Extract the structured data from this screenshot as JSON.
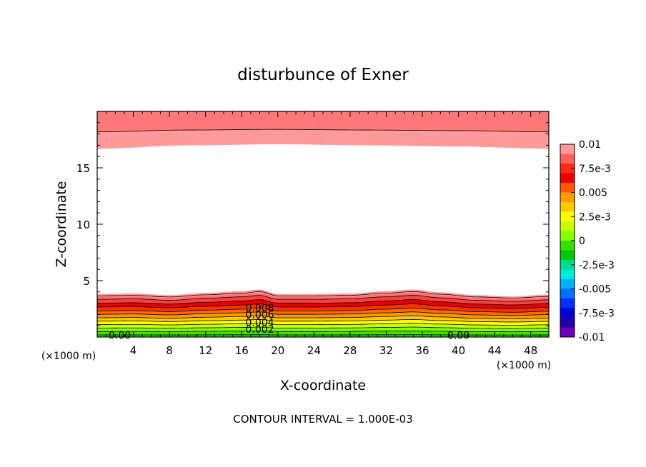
{
  "chart_data": {
    "type": "contour",
    "title": "disturbunce of Exner",
    "xlabel": "X-coordinate",
    "ylabel": "Z-coordinate",
    "x_unit_label_left": "(×1000 m)",
    "x_unit_label_right": "(×1000 m)",
    "xlim": [
      0,
      50
    ],
    "ylim": [
      0,
      20
    ],
    "x_ticks": [
      4,
      8,
      12,
      16,
      20,
      24,
      28,
      32,
      36,
      40,
      44,
      48
    ],
    "x_tick_labels": [
      "4",
      "8",
      "12",
      "16",
      "20",
      "24",
      "28",
      "32",
      "36",
      "40",
      "44",
      "48"
    ],
    "y_ticks": [
      5,
      10,
      15
    ],
    "y_tick_labels": [
      "5",
      "10",
      "15"
    ],
    "contour_interval_text": "CONTOUR INTERVAL = 1.000E-03",
    "colorbar": {
      "ticks": [
        0.01,
        0.0075,
        0.005,
        0.0025,
        0,
        -0.0025,
        -0.005,
        -0.0075,
        -0.01
      ],
      "tick_labels": [
        "0.01",
        "7.5e-3",
        "0.005",
        "2.5e-3",
        "0",
        "-2.5e-3",
        "-0.005",
        "-7.5e-3",
        "-0.01"
      ],
      "colors_top_to_bottom": [
        "#ff9a9a",
        "#ff6060",
        "#ff2a18",
        "#e60000",
        "#ff5a00",
        "#ff9a00",
        "#ffc800",
        "#ffff00",
        "#c8ff00",
        "#88ff00",
        "#33e000",
        "#00c800",
        "#00d890",
        "#00e8d8",
        "#00b0ff",
        "#0070ff",
        "#0030ff",
        "#0000d8",
        "#2000a8",
        "#7000b8"
      ]
    },
    "contour_labels": [
      {
        "text": "0.008",
        "x": 18.0,
        "z": 2.6
      },
      {
        "text": "0.006",
        "x": 18.0,
        "z": 2.0
      },
      {
        "text": "0.004",
        "x": 18.0,
        "z": 1.3
      },
      {
        "text": "0.002",
        "x": 18.0,
        "z": 0.7
      },
      {
        "text": "0.00",
        "x": 2.5,
        "z": 0.15
      },
      {
        "text": "0.00",
        "x": 40.0,
        "z": 0.15
      }
    ],
    "lower_layer_top": {
      "x": [
        0,
        4,
        8,
        12,
        16,
        18,
        20,
        24,
        28,
        32,
        35,
        38,
        42,
        46,
        50
      ],
      "z": [
        3.8,
        3.85,
        3.7,
        3.9,
        4.05,
        4.2,
        3.8,
        3.8,
        3.85,
        4.05,
        4.2,
        3.95,
        3.7,
        3.6,
        3.75
      ]
    },
    "upper_layer_bottom": {
      "x": [
        0,
        10,
        20,
        30,
        40,
        50
      ],
      "z": [
        16.7,
        17.0,
        17.1,
        17.0,
        16.9,
        16.7
      ]
    }
  }
}
